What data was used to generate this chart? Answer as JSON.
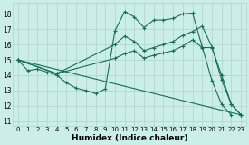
{
  "xlabel": "Humidex (Indice chaleur)",
  "background_color": "#cceee8",
  "grid_color": "#aad4cc",
  "line_color": "#1a6b5a",
  "xlim": [
    -0.5,
    23.5
  ],
  "ylim": [
    10.7,
    18.7
  ],
  "yticks": [
    11,
    12,
    13,
    14,
    15,
    16,
    17,
    18
  ],
  "xticks": [
    0,
    1,
    2,
    3,
    4,
    5,
    6,
    7,
    8,
    9,
    10,
    11,
    12,
    13,
    14,
    15,
    16,
    17,
    18,
    19,
    20,
    21,
    22,
    23
  ],
  "s1x": [
    0,
    1,
    2,
    3,
    4,
    5,
    6,
    7,
    8,
    9,
    10,
    11,
    12,
    13,
    14,
    15,
    16,
    17,
    18,
    19,
    20,
    21,
    22
  ],
  "s1y": [
    15.0,
    14.3,
    14.4,
    14.2,
    14.0,
    13.5,
    13.15,
    13.0,
    12.8,
    13.1,
    16.9,
    18.15,
    17.8,
    17.1,
    17.6,
    17.6,
    17.7,
    18.0,
    18.05,
    15.85,
    13.65,
    12.1,
    11.4
  ],
  "s2x": [
    0,
    4,
    10,
    11,
    12,
    13,
    14,
    15,
    16,
    17,
    18,
    19,
    20,
    21,
    22,
    23
  ],
  "s2y": [
    15.0,
    14.1,
    16.0,
    16.55,
    16.2,
    15.6,
    15.8,
    16.0,
    16.2,
    16.6,
    16.85,
    17.2,
    15.85,
    13.7,
    12.1,
    11.4
  ],
  "s3x": [
    0,
    4,
    10,
    11,
    12,
    13,
    14,
    15,
    16,
    17,
    18,
    19,
    20,
    21,
    22,
    23
  ],
  "s3y": [
    15.0,
    14.1,
    15.1,
    15.4,
    15.6,
    15.1,
    15.3,
    15.45,
    15.6,
    15.9,
    16.3,
    15.8,
    15.8,
    14.0,
    12.1,
    11.4
  ],
  "s4x": [
    0,
    23
  ],
  "s4y": [
    15.0,
    11.4
  ]
}
